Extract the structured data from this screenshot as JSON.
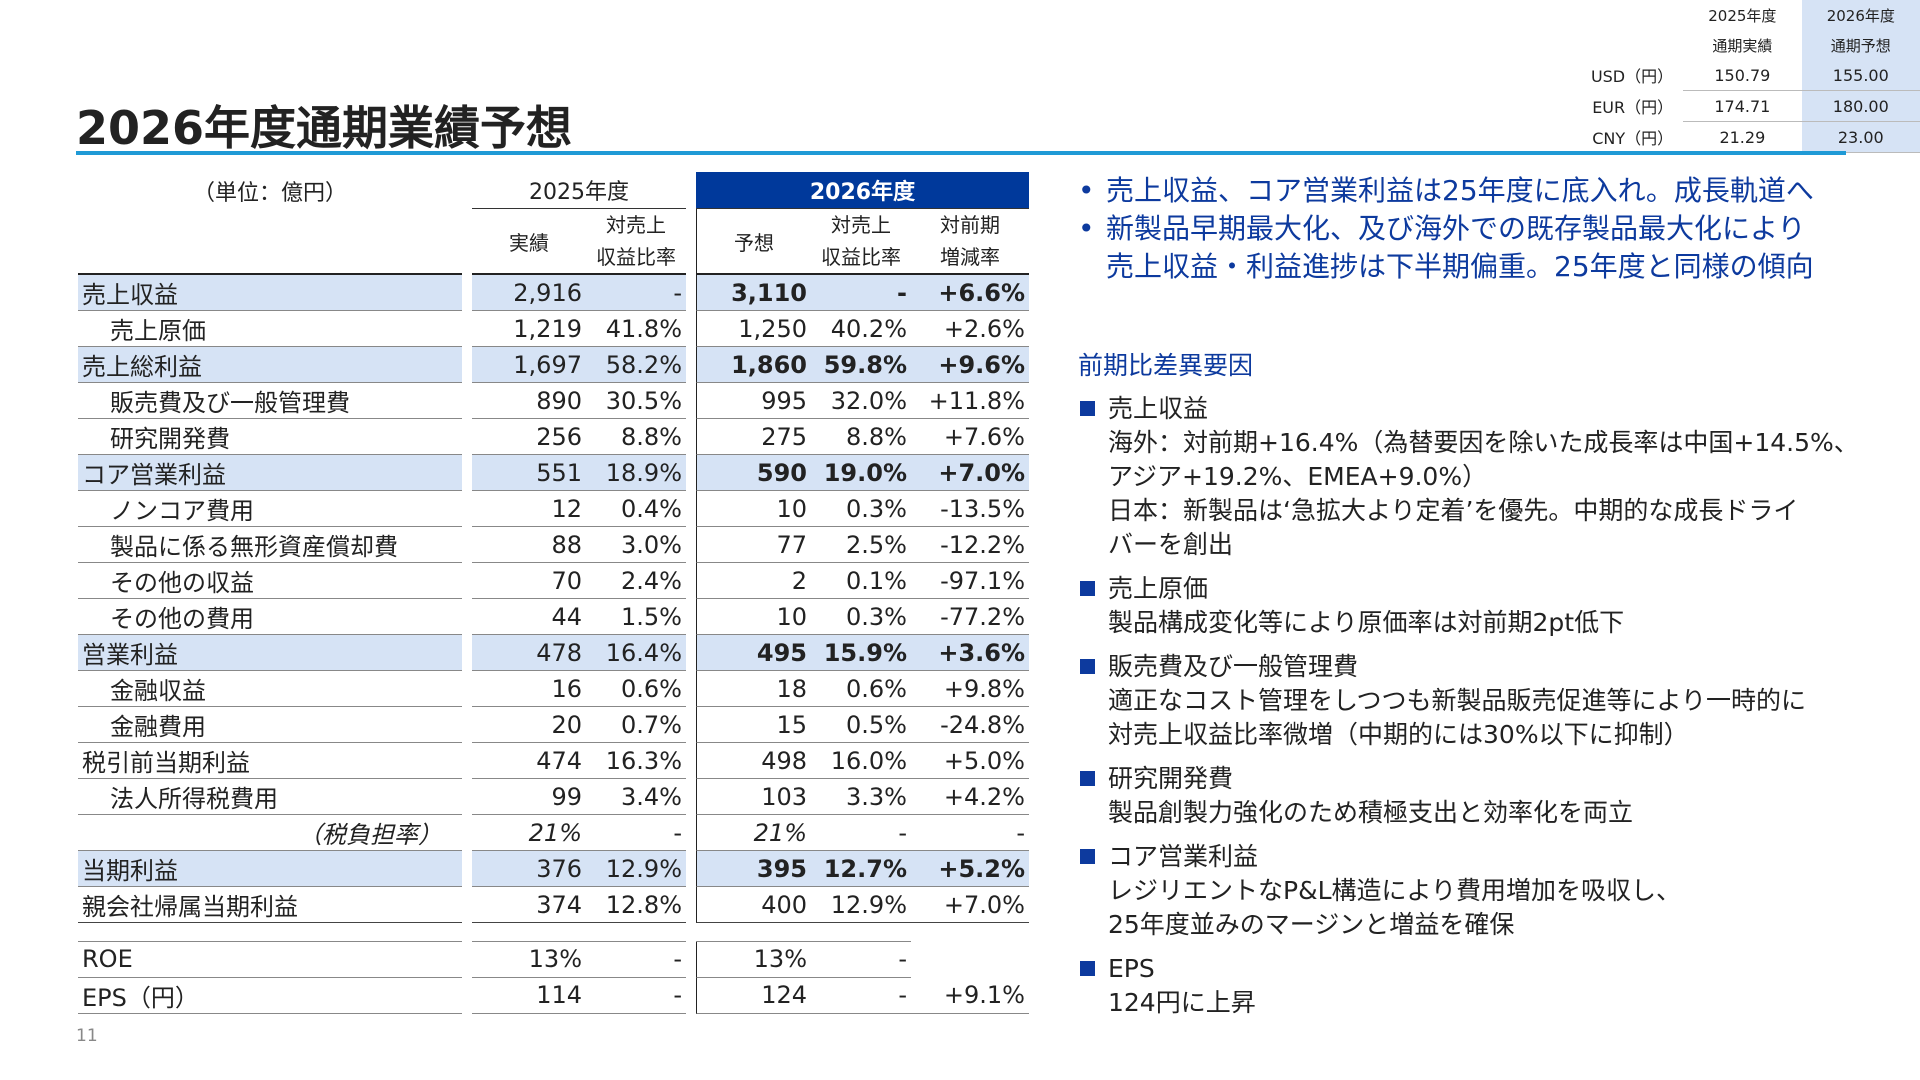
{
  "fx": {
    "head_2025_line1": "2025年度",
    "head_2025_line2": "通期実績",
    "head_2026_line1": "2026年度",
    "head_2026_line2": "通期予想",
    "rows": [
      {
        "label": "USD（円）",
        "v2025": "150.79",
        "v2026": "155.00"
      },
      {
        "label": "EUR（円）",
        "v2025": "174.71",
        "v2026": "180.00"
      },
      {
        "label": "CNY（円）",
        "v2025": "21.29",
        "v2026": "23.00"
      }
    ]
  },
  "title": "2026年度通期業績予想",
  "table": {
    "unit": "（単位：億円）",
    "year2025": "2025年度",
    "year2026": "2026年度",
    "h_actual": "実績",
    "h_ratio_l1": "対売上",
    "h_ratio_l2": "収益比率",
    "h_forecast": "予想",
    "h_yoy_l1": "対前期",
    "h_yoy_l2": "増減率",
    "rows": [
      {
        "name": "売上収益",
        "a": "2,916",
        "ar": "-",
        "f": "3,110",
        "fr": "-",
        "yoy": "+6.6%"
      },
      {
        "name": "売上原価",
        "a": "1,219",
        "ar": "41.8%",
        "f": "1,250",
        "fr": "40.2%",
        "yoy": "+2.6%"
      },
      {
        "name": "売上総利益",
        "a": "1,697",
        "ar": "58.2%",
        "f": "1,860",
        "fr": "59.8%",
        "yoy": "+9.6%"
      },
      {
        "name": "販売費及び一般管理費",
        "a": "890",
        "ar": "30.5%",
        "f": "995",
        "fr": "32.0%",
        "yoy": "+11.8%"
      },
      {
        "name": "研究開発費",
        "a": "256",
        "ar": "8.8%",
        "f": "275",
        "fr": "8.8%",
        "yoy": "+7.6%"
      },
      {
        "name": "コア営業利益",
        "a": "551",
        "ar": "18.9%",
        "f": "590",
        "fr": "19.0%",
        "yoy": "+7.0%"
      },
      {
        "name": "ノンコア費用",
        "a": "12",
        "ar": "0.4%",
        "f": "10",
        "fr": "0.3%",
        "yoy": "-13.5%"
      },
      {
        "name": "製品に係る無形資産償却費",
        "a": "88",
        "ar": "3.0%",
        "f": "77",
        "fr": "2.5%",
        "yoy": "-12.2%"
      },
      {
        "name": "その他の収益",
        "a": "70",
        "ar": "2.4%",
        "f": "2",
        "fr": "0.1%",
        "yoy": "-97.1%"
      },
      {
        "name": "その他の費用",
        "a": "44",
        "ar": "1.5%",
        "f": "10",
        "fr": "0.3%",
        "yoy": "-77.2%"
      },
      {
        "name": "営業利益",
        "a": "478",
        "ar": "16.4%",
        "f": "495",
        "fr": "15.9%",
        "yoy": "+3.6%"
      },
      {
        "name": "金融収益",
        "a": "16",
        "ar": "0.6%",
        "f": "18",
        "fr": "0.6%",
        "yoy": "+9.8%"
      },
      {
        "name": "金融費用",
        "a": "20",
        "ar": "0.7%",
        "f": "15",
        "fr": "0.5%",
        "yoy": "-24.8%"
      },
      {
        "name": "税引前当期利益",
        "a": "474",
        "ar": "16.3%",
        "f": "498",
        "fr": "16.0%",
        "yoy": "+5.0%"
      },
      {
        "name": "法人所得税費用",
        "a": "99",
        "ar": "3.4%",
        "f": "103",
        "fr": "3.3%",
        "yoy": "+4.2%"
      },
      {
        "name": "（税負担率）",
        "a": "21%",
        "ar": "-",
        "f": "21%",
        "fr": "-",
        "yoy": "-"
      },
      {
        "name": "当期利益",
        "a": "376",
        "ar": "12.9%",
        "f": "395",
        "fr": "12.7%",
        "yoy": "+5.2%"
      },
      {
        "name": "親会社帰属当期利益",
        "a": "374",
        "ar": "12.8%",
        "f": "400",
        "fr": "12.9%",
        "yoy": "+7.0%"
      }
    ],
    "roe": {
      "name": "ROE",
      "a": "13%",
      "ar": "-",
      "f": "13%",
      "fr": "-",
      "yoy": ""
    },
    "eps": {
      "name": "EPS（円）",
      "a": "114",
      "ar": "-",
      "f": "124",
      "fr": "-",
      "yoy": "+9.1%"
    }
  },
  "bullets": [
    "売上収益、コア営業利益は25年度に底入れ。成長軌道へ",
    "新製品早期最大化、及び海外での既存製品最大化により",
    "売上収益・利益進捗は下半期偏重。25年度と同様の傾向"
  ],
  "factors_heading": "前期比差異要因",
  "factors": [
    {
      "title": "売上収益",
      "lines": [
        "海外：対前期+16.4%（為替要因を除いた成長率は中国+14.5%、",
        "アジア+19.2%、EMEA+9.0%）",
        "日本：新製品は‘急拡大より定着’を優先。中期的な成長ドライ",
        "バーを創出"
      ]
    },
    {
      "title": "売上原価",
      "lines": [
        "製品構成変化等により原価率は対前期2pt低下"
      ]
    },
    {
      "title": "販売費及び一般管理費",
      "lines": [
        "適正なコスト管理をしつつも新製品販売促進等により一時的に",
        "対売上収益比率微増（中期的には30%以下に抑制）"
      ]
    },
    {
      "title": "研究開発費",
      "lines": [
        "製品創製力強化のため積極支出と効率化を両立"
      ]
    },
    {
      "title": "コア営業利益",
      "lines": [
        "レジリエントなP&L構造により費用増加を吸収し、",
        "25年度並みのマージンと増益を確保"
      ]
    },
    {
      "title": "EPS",
      "lines": [
        "124円に上昇"
      ]
    }
  ],
  "page_number": "11"
}
